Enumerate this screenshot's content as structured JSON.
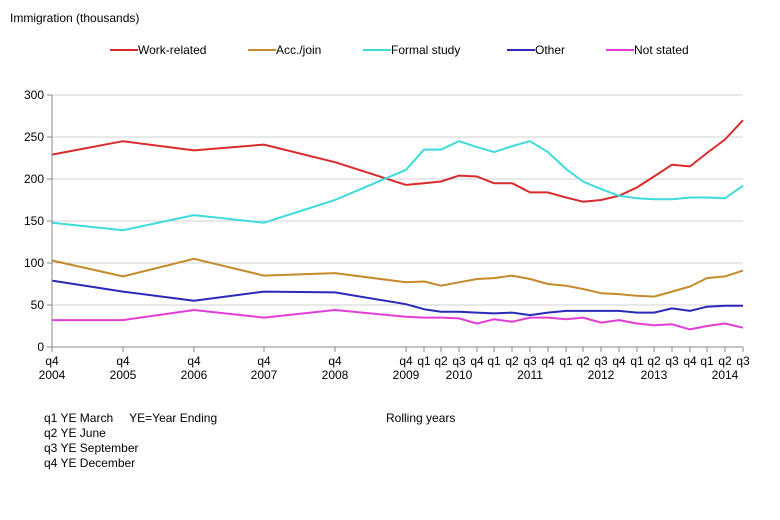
{
  "chart_data": {
    "type": "line",
    "ylabel": "Immigration (thousands)",
    "ylim": [
      0,
      300
    ],
    "yticks": [
      0,
      50,
      100,
      150,
      200,
      250,
      300
    ],
    "grid": "horizontal",
    "legend": "top",
    "x": [
      "q4 2004",
      "q4 2005",
      "q4 2006",
      "q4 2007",
      "q4 2008",
      "q4 2009",
      "q1 2010",
      "q2 2010",
      "q3 2010",
      "q4 2010",
      "q1 2011",
      "q2 2011",
      "q3 2011",
      "q4 2011",
      "q1 2012",
      "q2 2012",
      "q3 2012",
      "q4 2012",
      "q1 2013",
      "q2 2013",
      "q3 2013",
      "q4 2013",
      "q1 2014",
      "q2 2014",
      "q3 2014"
    ],
    "x_ticks": [
      {
        "q": "q4",
        "year": "2004"
      },
      {
        "q": "q4",
        "year": "2005"
      },
      {
        "q": "q4",
        "year": "2006"
      },
      {
        "q": "q4",
        "year": "2007"
      },
      {
        "q": "q4",
        "year": "2008"
      },
      {
        "q": "q4",
        "year": "2009"
      },
      {
        "q": "q1",
        "year": ""
      },
      {
        "q": "q2",
        "year": ""
      },
      {
        "q": "q3",
        "year": "2010"
      },
      {
        "q": "q4",
        "year": ""
      },
      {
        "q": "q1",
        "year": ""
      },
      {
        "q": "q2",
        "year": ""
      },
      {
        "q": "q3",
        "year": "2011"
      },
      {
        "q": "q4",
        "year": ""
      },
      {
        "q": "q1",
        "year": ""
      },
      {
        "q": "q2",
        "year": ""
      },
      {
        "q": "q3",
        "year": "2012"
      },
      {
        "q": "q4",
        "year": ""
      },
      {
        "q": "q1",
        "year": ""
      },
      {
        "q": "q2",
        "year": "2013"
      },
      {
        "q": "q3",
        "year": ""
      },
      {
        "q": "q4",
        "year": ""
      },
      {
        "q": "q1",
        "year": ""
      },
      {
        "q": "q2",
        "year": "2014"
      },
      {
        "q": "q3",
        "year": ""
      }
    ],
    "series": [
      {
        "name": "Work-related",
        "color": "#d92b2b",
        "values": [
          229,
          245,
          234,
          241,
          220,
          193,
          195,
          197,
          204,
          203,
          195,
          195,
          184,
          184,
          178,
          173,
          175,
          180,
          190,
          203,
          217,
          215,
          231,
          247,
          270
        ]
      },
      {
        "name": "Acc./join",
        "color": "#c48a2c",
        "values": [
          103,
          84,
          105,
          85,
          88,
          77,
          78,
          73,
          77,
          81,
          82,
          85,
          81,
          75,
          73,
          69,
          64,
          63,
          61,
          60,
          66,
          72,
          82,
          84,
          91
        ]
      },
      {
        "name": "Formal study",
        "color": "#3ddbdb",
        "values": [
          148,
          139,
          157,
          148,
          175,
          211,
          235,
          235,
          245,
          238,
          232,
          239,
          245,
          232,
          212,
          197,
          188,
          180,
          177,
          176,
          176,
          178,
          178,
          177,
          192
        ]
      },
      {
        "name": "Other",
        "color": "#2a2ab8",
        "values": [
          79,
          66,
          55,
          66,
          65,
          51,
          45,
          42,
          42,
          41,
          40,
          41,
          38,
          41,
          43,
          43,
          43,
          43,
          41,
          41,
          46,
          43,
          48,
          49,
          49
        ]
      },
      {
        "name": "Not stated",
        "color": "#e23ed6",
        "values": [
          32,
          32,
          44,
          35,
          44,
          36,
          35,
          35,
          34,
          28,
          33,
          30,
          35,
          35,
          33,
          35,
          29,
          32,
          28,
          26,
          27,
          21,
          25,
          28,
          23
        ]
      }
    ]
  },
  "notes": {
    "lines": [
      "q1 YE March",
      "q2 YE June",
      "q3 YE September",
      "q4 YE December"
    ],
    "ye": "YE=Year Ending",
    "rolling": "Rolling years"
  }
}
